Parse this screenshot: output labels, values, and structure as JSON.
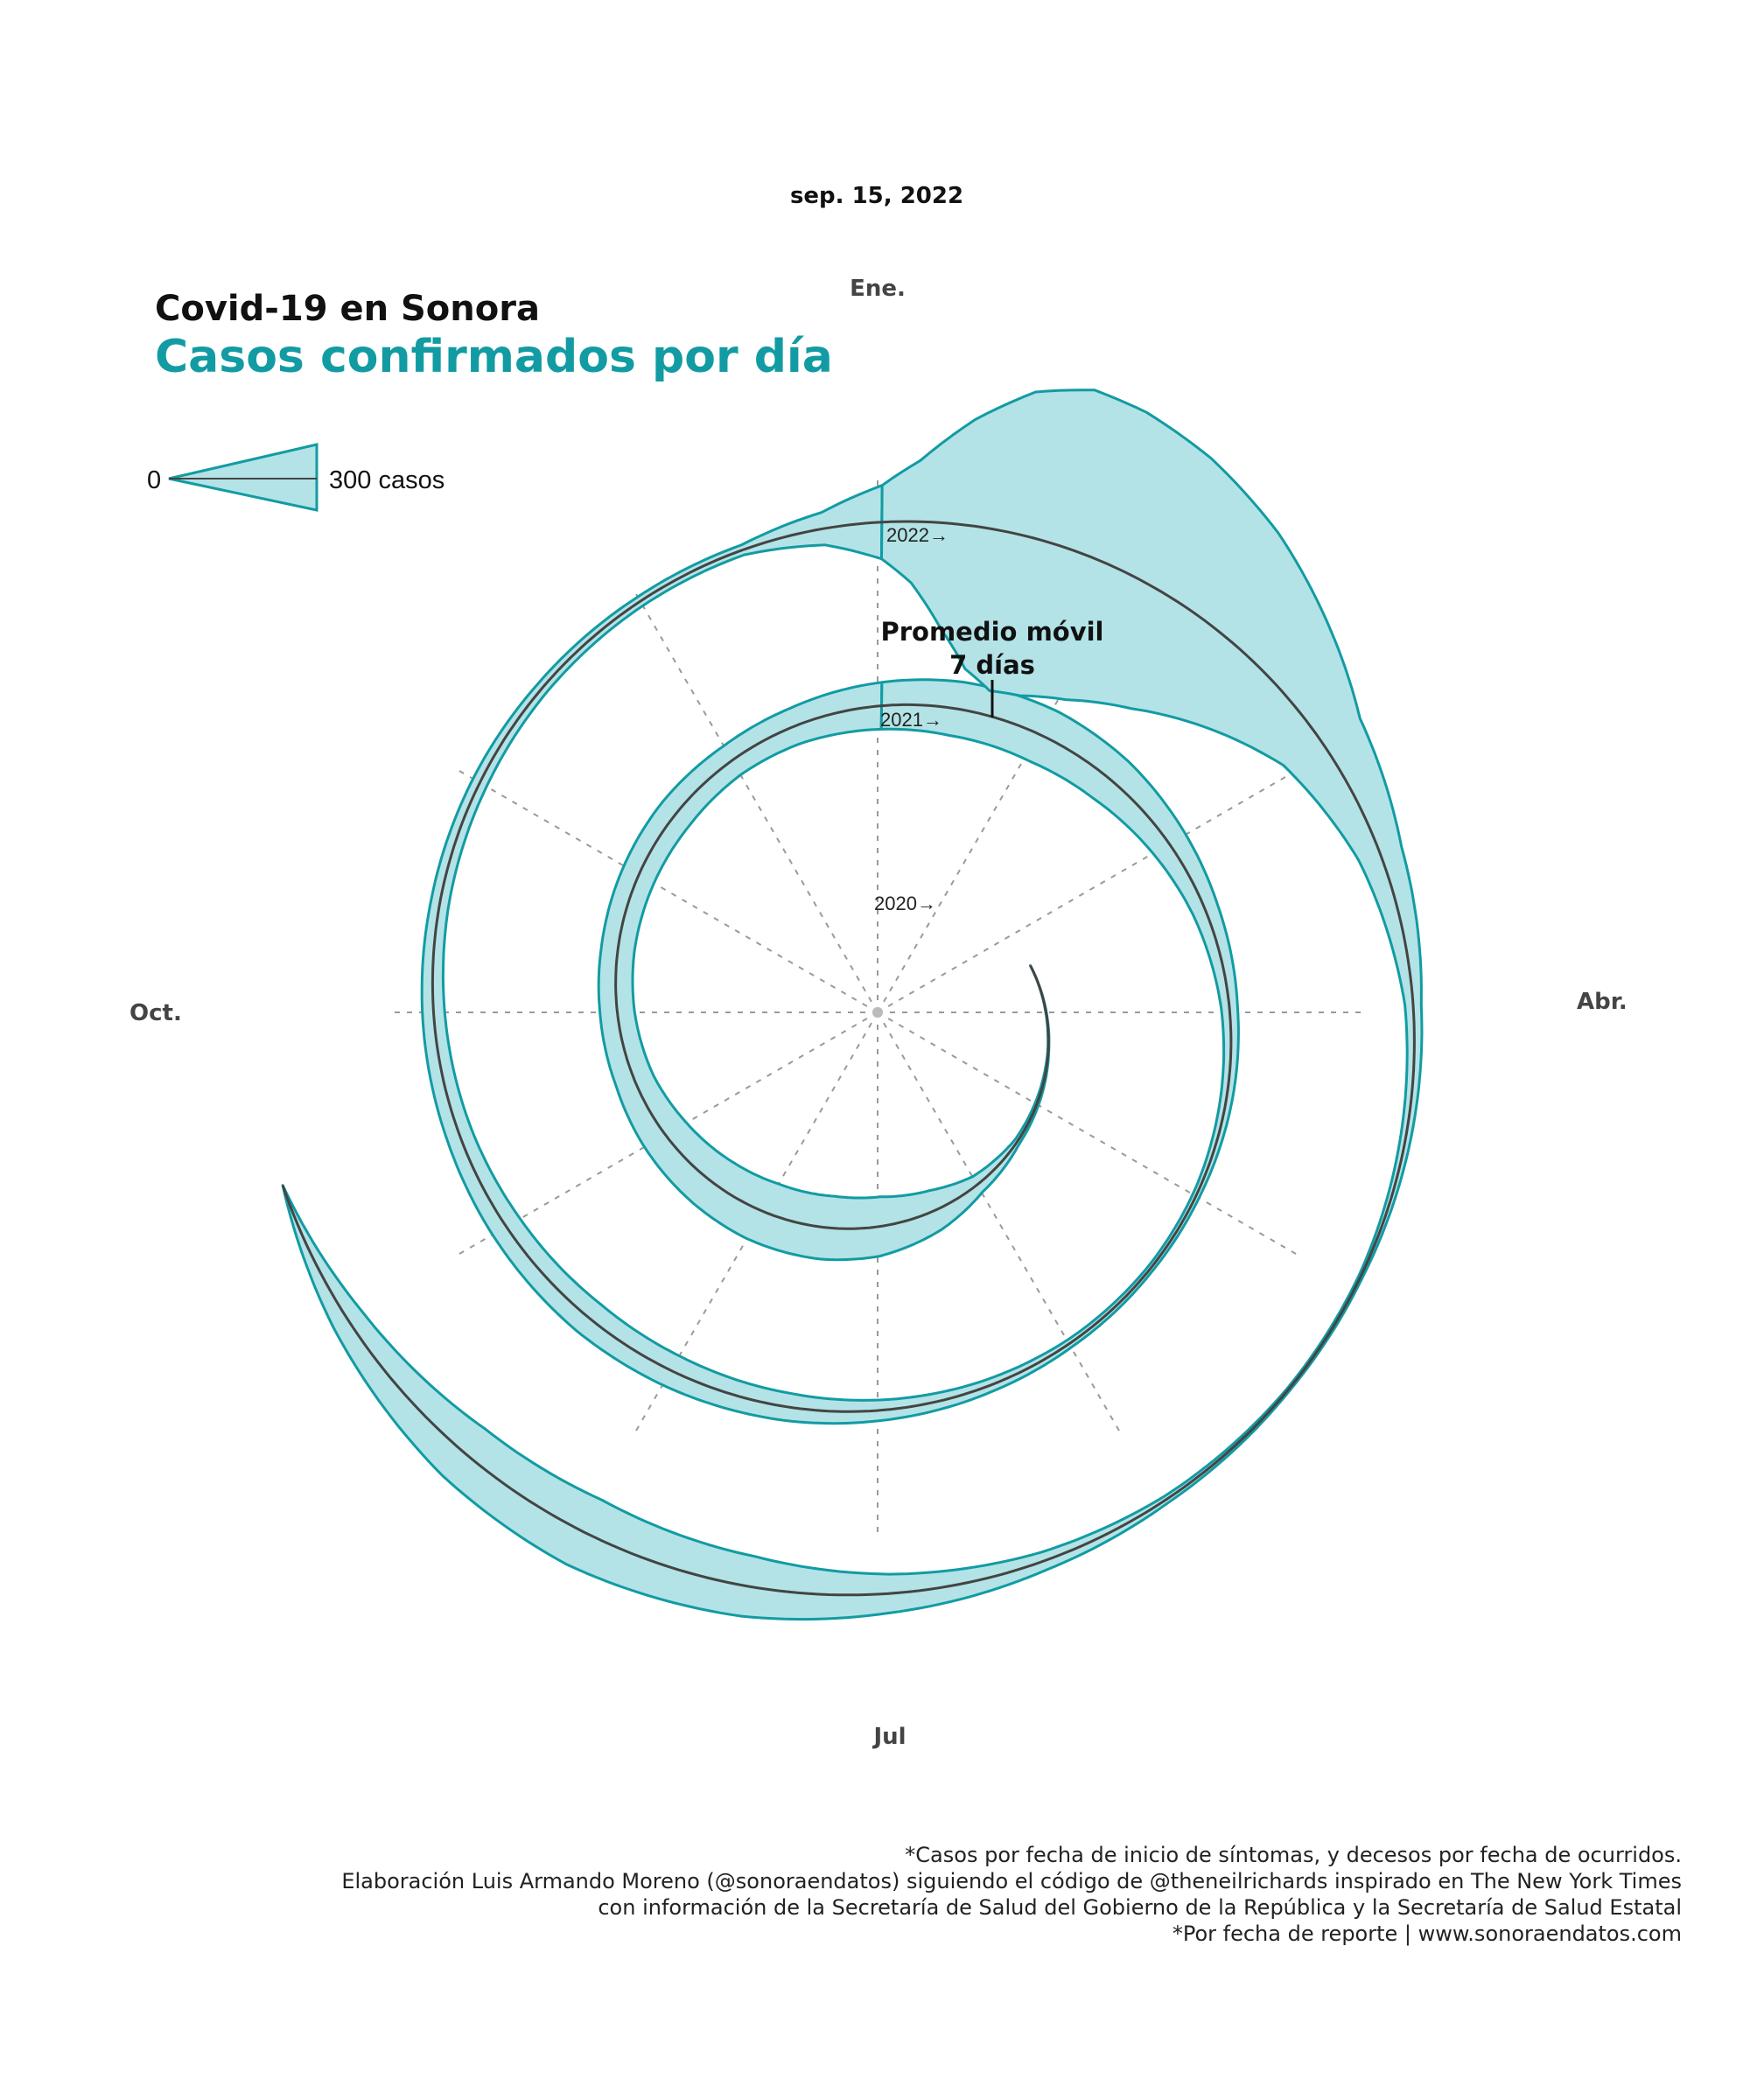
{
  "header": {
    "date": "sep. 15, 2022",
    "title": "Covid-19 en Sonora",
    "subtitle": "Casos confirmados por día"
  },
  "legend": {
    "zero_label": "0",
    "max_label": "300 casos"
  },
  "month_labels": {
    "jan": "Ene.",
    "apr": "Abr.",
    "jul": "Jul",
    "oct": "Oct."
  },
  "year_labels": [
    "2020→",
    "2021→",
    "2022→"
  ],
  "annotation": {
    "line1": "Promedio móvil",
    "line2": "7 días"
  },
  "footer": [
    "*Casos por fecha de inicio de síntomas, y decesos por fecha de ocurridos.",
    "Elaboración Luis Armando Moreno (@sonoraendatos) siguiendo el código de @theneilrichards inspirado en The New York Times",
    "con información de la Secretaría de Salud del Gobierno de la República y la Secretaría de Salud Estatal",
    "*Por fecha de reporte | www.sonoraendatos.com"
  ],
  "colors": {
    "band_fill": "#b3e3e6",
    "band_stroke": "#129ba3",
    "spiral": "#444444",
    "spiral_start": "#225c63"
  },
  "chart_data": {
    "type": "area",
    "chart_kind": "spiral",
    "title": "Covid-19 en Sonora",
    "subtitle": "Casos confirmados por día",
    "unit": "casos",
    "legend_max": 300,
    "x_start": "2020-03-15",
    "x_end": "2022-09-15",
    "note": "approximate 7-day rolling average of confirmed daily cases, read from band width",
    "series": [
      {
        "dates": [
          "2020-03-15",
          "2020-04-15",
          "2020-05-15",
          "2020-06-01",
          "2020-06-15",
          "2020-07-01",
          "2020-07-15",
          "2020-08-01",
          "2020-08-15",
          "2020-09-01",
          "2020-09-15",
          "2020-10-01",
          "2020-10-15",
          "2020-11-01",
          "2020-11-15",
          "2020-12-01",
          "2020-12-15",
          "2021-01-01",
          "2021-01-15",
          "2021-02-01",
          "2021-02-15",
          "2021-03-01",
          "2021-03-15",
          "2021-04-01",
          "2021-05-01",
          "2021-05-15",
          "2021-06-01",
          "2021-06-15",
          "2021-07-01",
          "2021-07-15",
          "2021-08-01",
          "2021-08-15",
          "2021-09-01",
          "2021-09-15",
          "2021-10-01",
          "2021-10-15",
          "2021-11-01",
          "2021-11-15",
          "2021-12-01",
          "2021-12-15",
          "2021-12-25",
          "2022-01-01",
          "2022-01-05",
          "2022-01-10",
          "2022-01-15",
          "2022-01-20",
          "2022-01-25",
          "2022-02-01",
          "2022-02-10",
          "2022-02-20",
          "2022-03-01",
          "2022-03-15",
          "2022-04-01",
          "2022-05-01",
          "2022-05-15",
          "2022-06-01",
          "2022-06-15",
          "2022-07-01",
          "2022-07-15",
          "2022-08-01",
          "2022-08-15",
          "2022-09-01",
          "2022-09-15"
        ],
        "values": [
          0,
          3,
          15,
          45,
          100,
          145,
          158,
          155,
          140,
          118,
          95,
          85,
          82,
          85,
          88,
          82,
          90,
          115,
          135,
          140,
          125,
          95,
          65,
          40,
          18,
          15,
          20,
          32,
          50,
          68,
          82,
          88,
          78,
          65,
          55,
          45,
          38,
          30,
          25,
          25,
          80,
          180,
          300,
          520,
          700,
          780,
          760,
          690,
          560,
          380,
          220,
          110,
          40,
          10,
          8,
          18,
          45,
          95,
          150,
          180,
          155,
          80,
          0
        ]
      }
    ]
  }
}
